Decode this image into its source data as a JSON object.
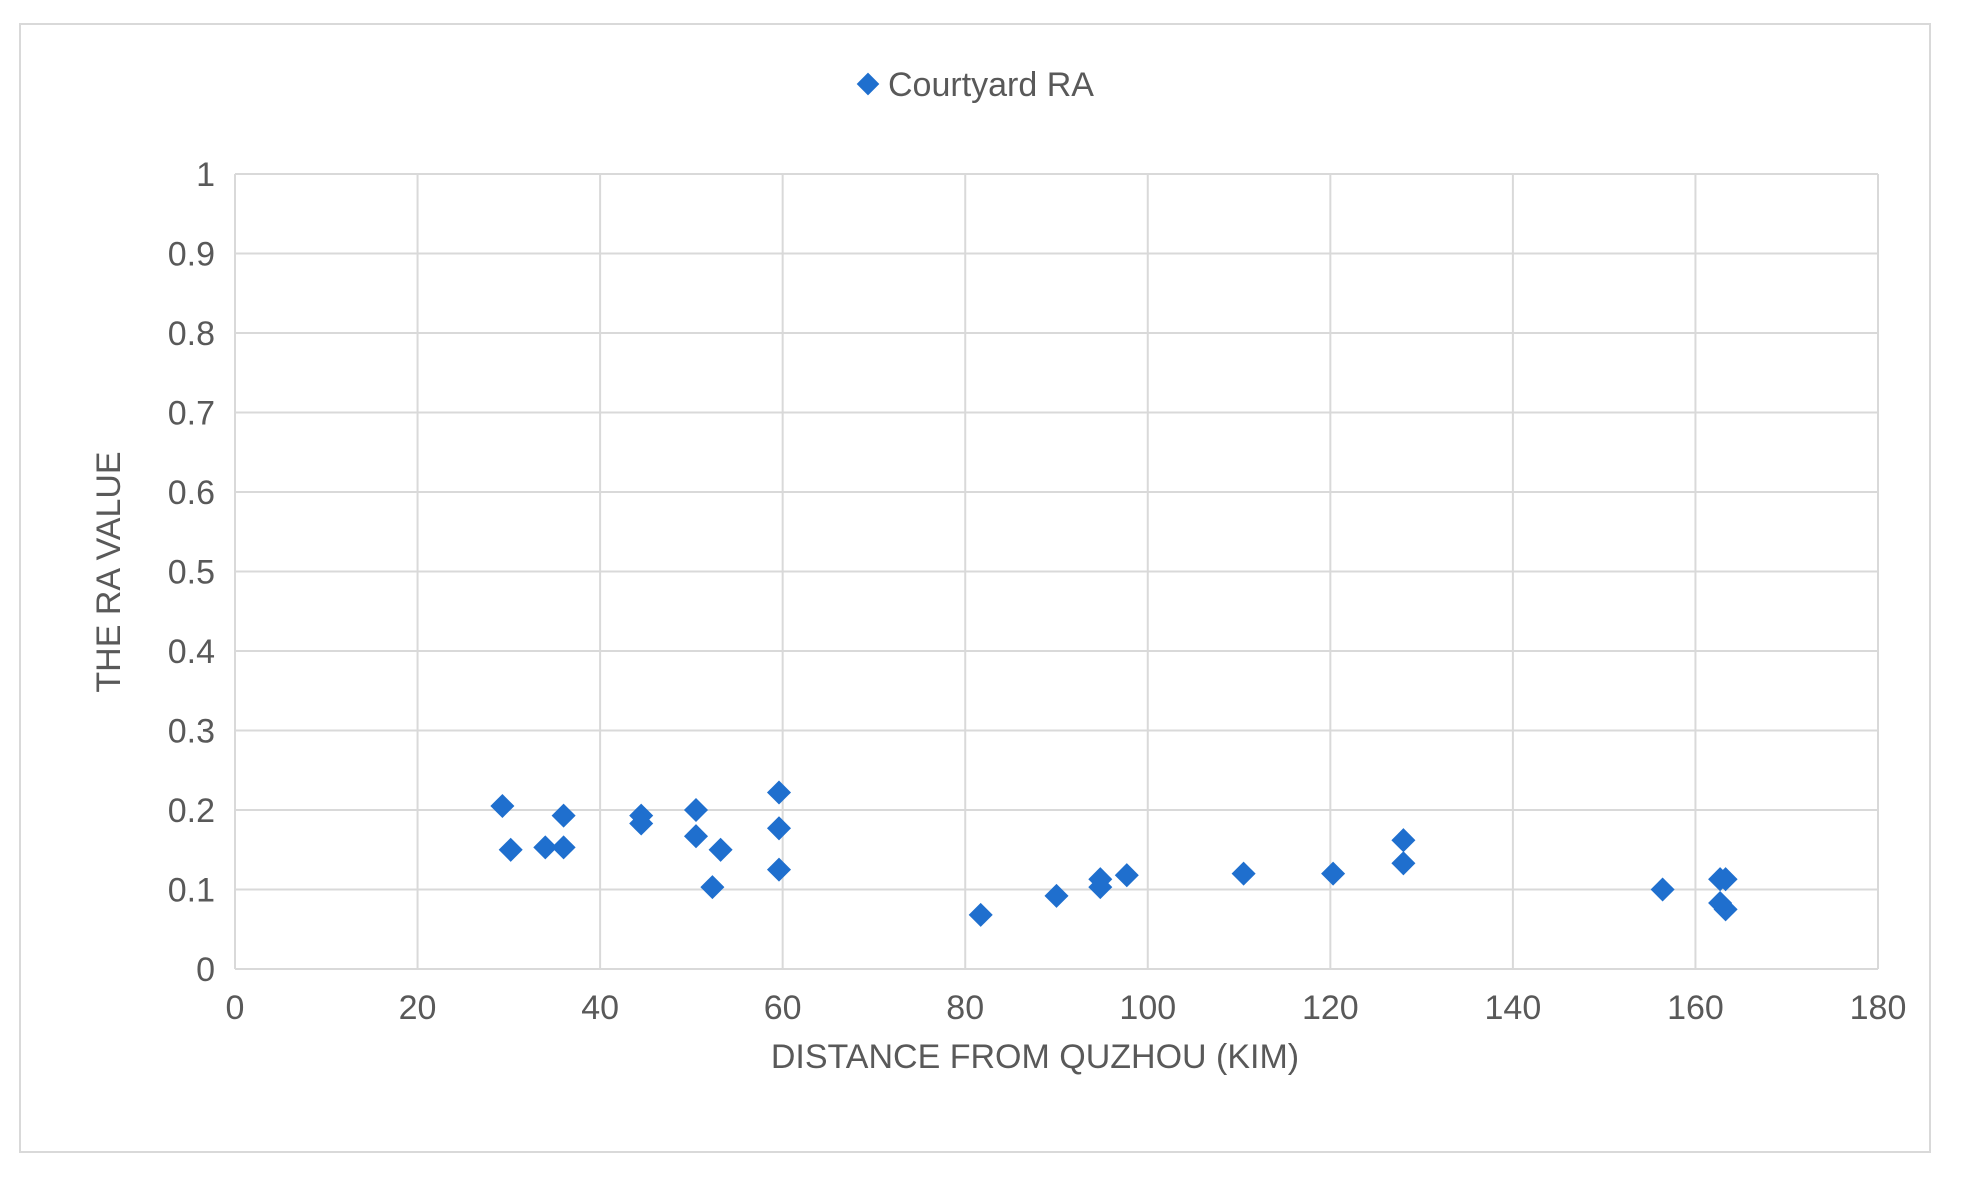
{
  "chart_data": {
    "type": "scatter",
    "title": "",
    "xlabel": "DISTANCE FROM QUZHOU (KIM)",
    "ylabel": "THE RA VALUE",
    "xlim": [
      0,
      180
    ],
    "ylim": [
      0,
      1
    ],
    "x_ticks": [
      "0",
      "20",
      "40",
      "60",
      "80",
      "100",
      "120",
      "140",
      "160",
      "180"
    ],
    "y_ticks": [
      "0",
      "0.1",
      "0.2",
      "0.3",
      "0.4",
      "0.5",
      "0.6",
      "0.7",
      "0.8",
      "0.9",
      "1"
    ],
    "grid": true,
    "legend_position": "top-center",
    "series": [
      {
        "name": "Courtyard RA",
        "marker": "diamond",
        "color": "#1f6fce",
        "points": [
          [
            29.3,
            0.205
          ],
          [
            30.2,
            0.15
          ],
          [
            34.0,
            0.153
          ],
          [
            36.0,
            0.153
          ],
          [
            36.0,
            0.193
          ],
          [
            44.5,
            0.193
          ],
          [
            44.5,
            0.183
          ],
          [
            50.5,
            0.2
          ],
          [
            50.5,
            0.167
          ],
          [
            53.2,
            0.15
          ],
          [
            52.3,
            0.103
          ],
          [
            59.6,
            0.222
          ],
          [
            59.6,
            0.177
          ],
          [
            59.6,
            0.125
          ],
          [
            81.7,
            0.068
          ],
          [
            90.0,
            0.092
          ],
          [
            94.8,
            0.113
          ],
          [
            94.8,
            0.103
          ],
          [
            97.7,
            0.118
          ],
          [
            110.5,
            0.12
          ],
          [
            120.3,
            0.12
          ],
          [
            128.0,
            0.162
          ],
          [
            128.0,
            0.133
          ],
          [
            156.4,
            0.1
          ],
          [
            162.7,
            0.113
          ],
          [
            163.3,
            0.113
          ],
          [
            162.7,
            0.083
          ],
          [
            163.3,
            0.075
          ]
        ]
      }
    ]
  }
}
